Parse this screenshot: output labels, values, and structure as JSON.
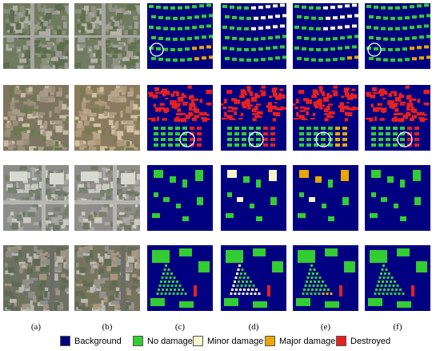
{
  "figure": {
    "columns": [
      "(a)",
      "(b)",
      "(c)",
      "(d)",
      "(e)",
      "(f)"
    ],
    "legend": [
      {
        "label": "Background",
        "color": "#000080"
      },
      {
        "label": "No damage",
        "color": "#33cc33"
      },
      {
        "label": "Minor damage",
        "color": "#f5f5cc"
      },
      {
        "label": "Major damage",
        "color": "#e6a800"
      },
      {
        "label": "Destroyed",
        "color": "#e62020"
      }
    ],
    "rows": [
      {
        "scene": "suburban-houses"
      },
      {
        "scene": "dense-village"
      },
      {
        "scene": "commercial-lots"
      },
      {
        "scene": "mobile-home-park"
      }
    ]
  }
}
